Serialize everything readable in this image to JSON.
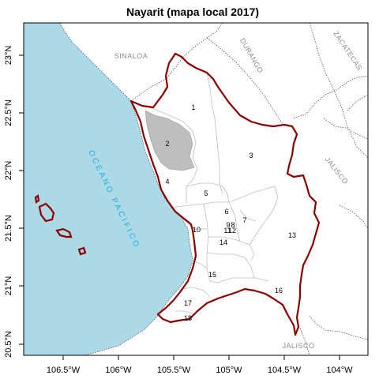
{
  "title": "Nayarit (mapa local 2017)",
  "colors": {
    "ocean": "#add8e6",
    "land": "#ffffff",
    "state_border": "#8b0000",
    "highlight": "#bebebe",
    "municipal_border": "#bfbfbf",
    "neighbor_border": "#555555",
    "ocean_text": "#1ab2e6",
    "neighbor_text": "#8c8c8c"
  },
  "ocean_label": "OCEANO PACIFICO",
  "neighbors": [
    "SINALOA",
    "DURANGO",
    "ZACATECAS",
    "JALISCO",
    "JALISCO"
  ],
  "x_ticks": [
    "106.5°W",
    "106°W",
    "105.5°W",
    "105°W",
    "104.5°W",
    "104°W"
  ],
  "y_ticks": [
    "23°N",
    "22.5°N",
    "22°N",
    "21.5°N",
    "21°N",
    "20.5°N"
  ],
  "highlighted_district": "2",
  "district_labels": [
    "1",
    "2",
    "3",
    "4",
    "5",
    "6",
    "7",
    "9",
    "8",
    "11",
    "12",
    "10",
    "13",
    "14",
    "15",
    "16",
    "17",
    "18"
  ]
}
